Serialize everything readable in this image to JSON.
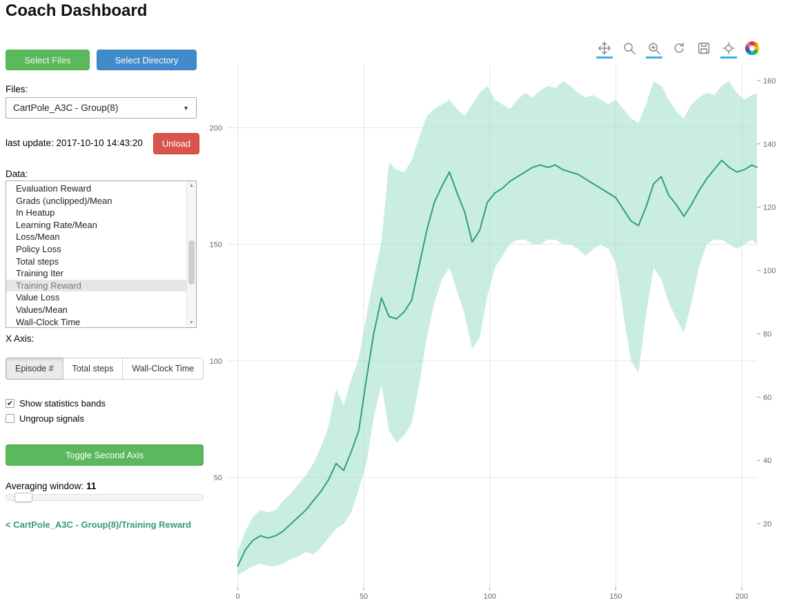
{
  "header": {
    "title": "Coach Dashboard"
  },
  "sidebar": {
    "select_files_label": "Select Files",
    "select_directory_label": "Select Directory",
    "files_label": "Files:",
    "files_selected": "CartPole_A3C - Group(8)",
    "last_update": "last update: 2017-10-10 14:43:20",
    "unload_label": "Unload",
    "data_label": "Data:",
    "data_items": [
      "Evaluation Reward",
      "Grads (unclipped)/Mean",
      "In Heatup",
      "Learning Rate/Mean",
      "Loss/Mean",
      "Policy Loss",
      "Total steps",
      "Training Iter",
      "Training Reward",
      "Value Loss",
      "Values/Mean",
      "Wall-Clock Time"
    ],
    "data_selected": "Training Reward",
    "x_axis_label": "X Axis:",
    "x_axis_options": [
      "Episode #",
      "Total steps",
      "Wall-Clock Time"
    ],
    "x_axis_selected": "Episode #",
    "checkboxes": [
      {
        "label": "Show statistics bands",
        "checked": true
      },
      {
        "label": "Ungroup signals",
        "checked": false
      }
    ],
    "toggle_second_axis_label": "Toggle Second Axis",
    "averaging_window_label": "Averaging window:",
    "averaging_window_value": "11",
    "breadcrumb": "< CartPole_A3C - Group(8)/Training Reward"
  },
  "toolbar": {
    "tools": [
      {
        "name": "pan",
        "active": true
      },
      {
        "name": "box-zoom",
        "active": false
      },
      {
        "name": "wheel-zoom",
        "active": true
      },
      {
        "name": "reset",
        "active": false
      },
      {
        "name": "save",
        "active": false
      },
      {
        "name": "hover",
        "active": true
      }
    ],
    "logo": "bokeh"
  },
  "chart_data": {
    "type": "line",
    "title": "",
    "series_name": "CartPole_A3C - Group(8)/Training Reward",
    "xlabel": "",
    "ylabel": "",
    "x": [
      0,
      3,
      6,
      9,
      12,
      15,
      18,
      21,
      24,
      27,
      30,
      33,
      36,
      39,
      42,
      45,
      48,
      51,
      54,
      57,
      60,
      63,
      66,
      69,
      72,
      75,
      78,
      81,
      84,
      87,
      90,
      93,
      96,
      99,
      102,
      105,
      108,
      111,
      114,
      117,
      120,
      123,
      126,
      129,
      132,
      135,
      138,
      141,
      144,
      147,
      150,
      153,
      156,
      159,
      162,
      165,
      168,
      171,
      174,
      177,
      180,
      183,
      186,
      189,
      192,
      195,
      198,
      201,
      204,
      206
    ],
    "mean": [
      12,
      19,
      23,
      25,
      24,
      25,
      27,
      30,
      33,
      36,
      40,
      44,
      49,
      56,
      53,
      61,
      70,
      92,
      112,
      127,
      119,
      118,
      121,
      126,
      141,
      156,
      168,
      175,
      181,
      172,
      164,
      151,
      156,
      168,
      172,
      174,
      177,
      179,
      181,
      183,
      184,
      183,
      184,
      182,
      181,
      180,
      178,
      176,
      174,
      172,
      170,
      165,
      160,
      158,
      166,
      176,
      179,
      171,
      167,
      162,
      167,
      173,
      178,
      182,
      186,
      183,
      181,
      182,
      184,
      183
    ],
    "band_upper": [
      18,
      27,
      33,
      36,
      35,
      36,
      40,
      43,
      47,
      51,
      56,
      63,
      72,
      88,
      81,
      92,
      101,
      119,
      136,
      151,
      185,
      182,
      181,
      186,
      196,
      205,
      208,
      210,
      212,
      208,
      205,
      210,
      215,
      218,
      212,
      210,
      208,
      212,
      215,
      213,
      216,
      218,
      217,
      220,
      218,
      215,
      213,
      214,
      212,
      210,
      212,
      208,
      204,
      202,
      210,
      220,
      218,
      212,
      207,
      204,
      210,
      213,
      215,
      214,
      218,
      220,
      215,
      212,
      214,
      215
    ],
    "band_lower": [
      8,
      10,
      12,
      13,
      12,
      12,
      13,
      15,
      16,
      18,
      17,
      20,
      24,
      28,
      30,
      35,
      45,
      56,
      76,
      90,
      70,
      65,
      68,
      73,
      90,
      110,
      125,
      135,
      140,
      130,
      120,
      105,
      110,
      128,
      140,
      145,
      150,
      152,
      152,
      150,
      150,
      152,
      152,
      150,
      150,
      148,
      145,
      148,
      150,
      148,
      142,
      120,
      100,
      95,
      120,
      140,
      135,
      125,
      118,
      112,
      125,
      140,
      150,
      152,
      152,
      150,
      148,
      150,
      152,
      150
    ],
    "xlim": [
      -4,
      206
    ],
    "ylim": [
      3,
      227
    ],
    "right_ylim": [
      0,
      165
    ],
    "x_ticks": [
      0,
      50,
      100,
      150,
      200
    ],
    "y_ticks": [
      50,
      100,
      150,
      200
    ],
    "right_y_ticks": [
      20,
      40,
      60,
      80,
      100,
      120,
      140,
      160
    ],
    "grid": true,
    "legend": "none",
    "colors": {
      "line": "#2f9e77",
      "band": "#9edfc9"
    }
  }
}
